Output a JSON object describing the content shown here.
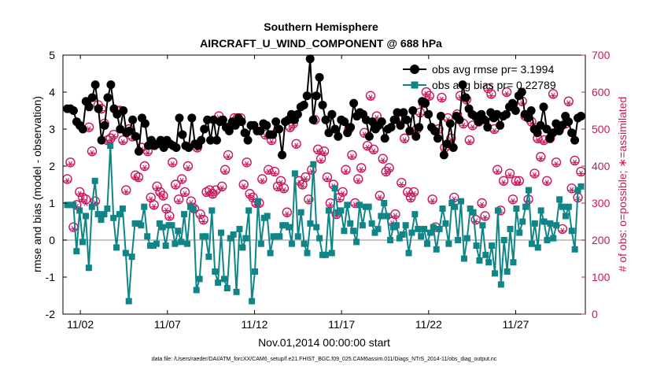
{
  "chart_data": {
    "type": "line",
    "title": "Southern Hemisphere",
    "subtitle": "AIRCRAFT_U_WIND_COMPONENT @ 688 hPa",
    "xlabel": "Nov.01,2014 00:00:00 start",
    "ylabel": "rmse and bias (model - observation)",
    "ylabel_right": "# of obs: o=possible; ∗=assimilated",
    "footer": "data file: /Users/raeder/DAI/ATM_forcXX/CAM6_setup/f.e21.FHIST_BGC.f09_025.CAM6assim.011/Diags_NTrS_2014-11/obs_diag_output.nc",
    "x_ticks": [
      {
        "label": "11/02",
        "day": 2
      },
      {
        "label": "11/07",
        "day": 7
      },
      {
        "label": "11/12",
        "day": 12
      },
      {
        "label": "11/17",
        "day": 17
      },
      {
        "label": "11/22",
        "day": 22
      },
      {
        "label": "11/27",
        "day": 27
      }
    ],
    "xlim": [
      1,
      31
    ],
    "ylim": [
      -2,
      5
    ],
    "y_ticks": [
      -2,
      -1,
      0,
      1,
      2,
      3,
      4,
      5
    ],
    "ylim_right": [
      0,
      700
    ],
    "y_ticks_right": [
      0,
      100,
      200,
      300,
      400,
      500,
      600,
      700
    ],
    "legend_position": "top-right",
    "colors": {
      "rmse": "#000000",
      "bias": "#0f8587",
      "obs": "#c8175d",
      "zero_line": "#b3b3b3"
    },
    "series": [
      {
        "name": "obs avg rmse pr= 3.1994",
        "axis": "left",
        "values": [
          3.55,
          3.55,
          3.5,
          3.2,
          3.1,
          3.0,
          3.75,
          3.6,
          3.85,
          4.2,
          3.55,
          2.7,
          3.1,
          3.85,
          4.2,
          3.55,
          3.4,
          3.0,
          3.5,
          2.9,
          2.95,
          3.25,
          2.8,
          2.4,
          3.3,
          3.15,
          2.55,
          2.7,
          2.55,
          2.6,
          2.7,
          2.5,
          2.7,
          2.6,
          2.55,
          2.5,
          3.3,
          2.85,
          2.55,
          2.5,
          3.3,
          2.6,
          2.55,
          2.7,
          3.0,
          3.25,
          2.7,
          3.25,
          2.7,
          3.2,
          3.25,
          3.05,
          2.95,
          3.2,
          3.1,
          3.3,
          3.2,
          2.9,
          2.7,
          3.1,
          3.1,
          2.95,
          2.95,
          3.15,
          3.1,
          2.85,
          2.85,
          3.2,
          3.0,
          2.3,
          3.2,
          3.25,
          3.4,
          3.25,
          3.4,
          3.6,
          3.65,
          3.9,
          4.9,
          3.25,
          3.9,
          4.4,
          3.65,
          3.25,
          2.9,
          3.4,
          3.0,
          2.8,
          3.25,
          3.2,
          2.9,
          3.05,
          3.7,
          3.35,
          3.45,
          3.4,
          3.25,
          2.8,
          3.2,
          3.0,
          3.1,
          3.2,
          2.75,
          3.0,
          3.05,
          3.25,
          3.45,
          3.1,
          3.45,
          3.25,
          2.95,
          3.5,
          2.8,
          3.05,
          3.75,
          3.7,
          3.4,
          3.05,
          2.95,
          2.75,
          3.35,
          2.3,
          2.6,
          3.15,
          2.5,
          3.35,
          3.25,
          4.2,
          3.85,
          3.55,
          3.4,
          3.35,
          3.2,
          3.4,
          3.25,
          3.05,
          3.45,
          3.3,
          3.4,
          3.1,
          3.35,
          3.4,
          3.6,
          3.7,
          3.5,
          3.9,
          4.0,
          3.4,
          3.3,
          3.5,
          3.0,
          2.9,
          3.1,
          3.6,
          3.0,
          2.75,
          2.9,
          3.15,
          2.95,
          3.1,
          3.35,
          3.2,
          2.9,
          2.7,
          3.3,
          3.35
        ]
      },
      {
        "name": "obs avg bias pr= 0.22789",
        "axis": "left",
        "values": [
          0.95,
          0.95,
          0.95,
          -0.3,
          0.8,
          -0.05,
          0.65,
          -0.75,
          0.9,
          1.6,
          0.7,
          0.55,
          0.7,
          0.85,
          2.55,
          0.6,
          -0.2,
          0.7,
          0.85,
          -0.35,
          -1.65,
          -0.45,
          0.45,
          0.45,
          0.4,
          0.9,
          0.1,
          -0.15,
          -0.15,
          -0.1,
          0.45,
          0.35,
          -0.15,
          0.4,
          0.4,
          -0.1,
          0.25,
          -0.05,
          0.7,
          -0.1,
          0.9,
          0.85,
          -1.35,
          -1.05,
          0.1,
          0.1,
          -0.45,
          0.8,
          -0.85,
          -1.15,
          0.2,
          -1.05,
          -1.3,
          0.05,
          0.15,
          -1.4,
          0.3,
          -0.2,
          0.05,
          0.8,
          -1.65,
          -0.85,
          1.05,
          -0.1,
          0.6,
          0.65,
          -0.35,
          0.1,
          0.1,
          0.1,
          0.4,
          0.4,
          0.35,
          -0.1,
          1.8,
          0.1,
          0.75,
          -0.1,
          -0.35,
          0.45,
          2.05,
          0.35,
          0.05,
          -0.4,
          -0.4,
          0.8,
          -0.35,
          1.4,
          0.75,
          0.8,
          0.25,
          0.95,
          0.45,
          0.25,
          -0.05,
          0.95,
          0.4,
          0.9,
          0.9,
          0.45,
          0.2,
          0.3,
          0.65,
          1.0,
          0.65,
          0.0,
          0.35,
          0.4,
          0.05,
          0.15,
          0.4,
          -0.35,
          0.2,
          0.7,
          0.3,
          0.1,
          0.3,
          -0.1,
          0.2,
          0.35,
          -0.25,
          0.3,
          0.85,
          0.45,
          -0.1,
          1.0,
          0.9,
          0.0,
          1.05,
          -0.5,
          0.05,
          0.85,
          0.75,
          -0.15,
          -0.55,
          0.4,
          -0.4,
          -0.6,
          -0.15,
          -0.9,
          0.8,
          -1.2,
          0.0,
          -0.85,
          0.3,
          -0.6,
          0.85,
          0.2,
          0.5,
          0.9,
          1.35,
          -0.1,
          0.45,
          -0.2,
          0.8,
          0.5,
          0.0,
          0.45,
          0.05,
          0.4,
          1.1,
          0.9,
          0.65,
          0.9,
          0.25,
          -0.25,
          1.35,
          1.45
        ]
      },
      {
        "name": "obs possible",
        "axis": "right",
        "marker": "circle-open",
        "values": [
          365,
          410,
          235,
          295,
          330,
          315,
          310,
          505,
          440,
          305,
          565,
          555,
          515,
          470,
          475,
          485,
          550,
          550,
          470,
          335,
          500,
          480,
          375,
          370,
          450,
          400,
          440,
          315,
          295,
          345,
          330,
          320,
          285,
          265,
          410,
          350,
          310,
          365,
          330,
          400,
          305,
          285,
          450,
          270,
          255,
          330,
          335,
          325,
          335,
          535,
          345,
          390,
          430,
          510,
          530,
          530,
          530,
          350,
          410,
          325,
          315,
          300,
          300,
          365,
          485,
          390,
          470,
          385,
          345,
          360,
          340,
          275,
          505,
          515,
          460,
          360,
          350,
          370,
          310,
          390,
          525,
          445,
          420,
          440,
          370,
          300,
          350,
          270,
          315,
          330,
          390,
          500,
          430,
          300,
          365,
          395,
          490,
          455,
          590,
          445,
          535,
          320,
          420,
          385,
          395,
          250,
          270,
          525,
          355,
          475,
          330,
          315,
          330,
          500,
          545,
          570,
          600,
          590,
          310,
          235,
          500,
          585,
          450,
          530,
          475,
          315,
          540,
          590,
          515,
          580,
          470,
          510,
          255,
          520,
          300,
          265,
          610,
          595,
          500,
          390,
          280,
          360,
          600,
          380,
          310,
          360,
          360,
          575,
          535,
          310,
          520,
          380,
          475,
          425,
          470,
          360,
          475,
          595,
          410,
          500,
          230,
          515,
          575,
          340,
          415,
          315,
          385
        ]
      },
      {
        "name": "obs assimilated",
        "axis": "right",
        "marker": "asterisk",
        "values": [
          360,
          405,
          230,
          290,
          325,
          310,
          300,
          500,
          435,
          300,
          560,
          550,
          510,
          465,
          470,
          480,
          545,
          545,
          465,
          330,
          495,
          475,
          370,
          365,
          445,
          395,
          435,
          310,
          290,
          340,
          325,
          315,
          280,
          260,
          405,
          345,
          305,
          360,
          325,
          395,
          300,
          280,
          445,
          265,
          250,
          325,
          330,
          320,
          330,
          530,
          340,
          385,
          425,
          505,
          525,
          525,
          525,
          345,
          405,
          320,
          310,
          295,
          295,
          360,
          480,
          385,
          465,
          380,
          340,
          355,
          335,
          270,
          500,
          510,
          455,
          355,
          345,
          365,
          305,
          385,
          520,
          440,
          415,
          435,
          365,
          295,
          345,
          265,
          310,
          325,
          385,
          495,
          425,
          295,
          360,
          390,
          485,
          450,
          585,
          440,
          530,
          315,
          415,
          380,
          390,
          245,
          265,
          520,
          350,
          470,
          325,
          310,
          325,
          495,
          540,
          565,
          595,
          585,
          305,
          230,
          495,
          580,
          445,
          525,
          470,
          310,
          535,
          585,
          510,
          575,
          465,
          505,
          250,
          515,
          295,
          260,
          605,
          590,
          495,
          385,
          275,
          355,
          595,
          375,
          305,
          355,
          355,
          570,
          530,
          305,
          515,
          375,
          470,
          420,
          465,
          355,
          470,
          590,
          405,
          495,
          225,
          510,
          570,
          335,
          410,
          310,
          380
        ]
      }
    ]
  }
}
